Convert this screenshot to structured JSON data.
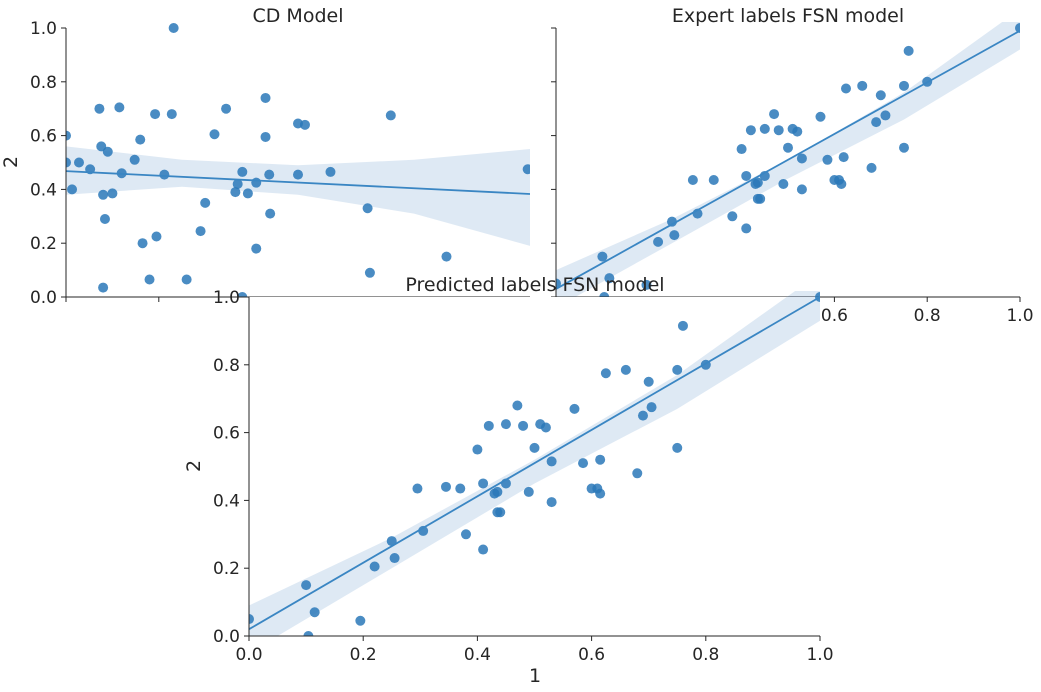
{
  "chart_data": [
    {
      "type": "scatter",
      "title": "CD Model",
      "xlabel": "",
      "ylabel": "2",
      "xlim": [
        0,
        1.0
      ],
      "ylim": [
        0,
        1.0
      ],
      "yticks": [
        "0.0",
        "0.2",
        "0.4",
        "0.6",
        "0.8",
        "1.0"
      ],
      "xticks": [
        "",
        "",
        "",
        "",
        "",
        ""
      ],
      "regression": {
        "y0": 0.468,
        "y1": 0.383
      },
      "band": {
        "upper": [
          [
            0,
            0.56
          ],
          [
            0.25,
            0.51
          ],
          [
            0.5,
            0.49
          ],
          [
            0.75,
            0.51
          ],
          [
            1.0,
            0.55
          ]
        ],
        "lower": [
          [
            0,
            0.38
          ],
          [
            0.25,
            0.41
          ],
          [
            0.5,
            0.38
          ],
          [
            0.75,
            0.31
          ],
          [
            1.0,
            0.19
          ]
        ]
      },
      "points": [
        [
          0.0,
          0.6
        ],
        [
          0.0,
          0.5
        ],
        [
          0.013,
          0.4
        ],
        [
          0.028,
          0.5
        ],
        [
          0.052,
          0.475
        ],
        [
          0.072,
          0.7
        ],
        [
          0.076,
          0.56
        ],
        [
          0.08,
          0.38
        ],
        [
          0.084,
          0.29
        ],
        [
          0.09,
          0.54
        ],
        [
          0.08,
          0.035
        ],
        [
          0.1,
          0.385
        ],
        [
          0.115,
          0.705
        ],
        [
          0.12,
          0.46
        ],
        [
          0.148,
          0.51
        ],
        [
          0.16,
          0.585
        ],
        [
          0.165,
          0.2
        ],
        [
          0.18,
          0.065
        ],
        [
          0.192,
          0.68
        ],
        [
          0.195,
          0.225
        ],
        [
          0.212,
          0.455
        ],
        [
          0.228,
          0.68
        ],
        [
          0.232,
          1.0
        ],
        [
          0.26,
          0.065
        ],
        [
          0.29,
          0.245
        ],
        [
          0.3,
          0.35
        ],
        [
          0.32,
          0.605
        ],
        [
          0.345,
          0.7
        ],
        [
          0.365,
          0.39
        ],
        [
          0.37,
          0.42
        ],
        [
          0.38,
          0.465
        ],
        [
          0.392,
          0.385
        ],
        [
          0.41,
          0.18
        ],
        [
          0.41,
          0.425
        ],
        [
          0.43,
          0.74
        ],
        [
          0.43,
          0.595
        ],
        [
          0.438,
          0.455
        ],
        [
          0.44,
          0.31
        ],
        [
          0.5,
          0.645
        ],
        [
          0.5,
          0.455
        ],
        [
          0.515,
          0.64
        ],
        [
          0.57,
          0.465
        ],
        [
          0.65,
          0.33
        ],
        [
          0.655,
          0.09
        ],
        [
          0.7,
          0.675
        ],
        [
          0.82,
          0.15
        ],
        [
          0.995,
          0.475
        ],
        [
          0.38,
          0.0
        ]
      ]
    },
    {
      "type": "scatter",
      "title": "Expert labels FSN model",
      "xlabel": "",
      "ylabel": "",
      "xlim": [
        0,
        1.0
      ],
      "ylim": [
        0,
        1.0
      ],
      "xticks": [
        "0.6",
        "0.8",
        "1.0"
      ],
      "regression": {
        "y0": 0.03,
        "y1": 0.99
      },
      "band": {
        "upper": [
          [
            0,
            0.1
          ],
          [
            0.25,
            0.29
          ],
          [
            0.5,
            0.51
          ],
          [
            0.75,
            0.76
          ],
          [
            1.0,
            1.07
          ]
        ],
        "lower": [
          [
            0,
            -0.04
          ],
          [
            0.25,
            0.2
          ],
          [
            0.5,
            0.44
          ],
          [
            0.75,
            0.66
          ],
          [
            1.0,
            0.92
          ]
        ]
      },
      "points": [
        [
          0.0,
          0.05
        ],
        [
          0.1,
          0.15
        ],
        [
          0.104,
          0.0
        ],
        [
          0.115,
          0.07
        ],
        [
          0.195,
          0.045
        ],
        [
          0.22,
          0.205
        ],
        [
          0.25,
          0.28
        ],
        [
          0.255,
          0.23
        ],
        [
          0.305,
          0.31
        ],
        [
          0.295,
          0.435
        ],
        [
          0.34,
          0.435
        ],
        [
          0.38,
          0.3
        ],
        [
          0.4,
          0.55
        ],
        [
          0.41,
          0.45
        ],
        [
          0.41,
          0.255
        ],
        [
          0.42,
          0.62
        ],
        [
          0.43,
          0.42
        ],
        [
          0.435,
          0.425
        ],
        [
          0.435,
          0.365
        ],
        [
          0.44,
          0.365
        ],
        [
          0.45,
          0.625
        ],
        [
          0.45,
          0.45
        ],
        [
          0.47,
          0.68
        ],
        [
          0.48,
          0.62
        ],
        [
          0.49,
          0.42
        ],
        [
          0.5,
          0.555
        ],
        [
          0.51,
          0.625
        ],
        [
          0.52,
          0.615
        ],
        [
          0.53,
          0.515
        ],
        [
          0.53,
          0.4
        ],
        [
          0.57,
          0.67
        ],
        [
          0.585,
          0.51
        ],
        [
          0.6,
          0.435
        ],
        [
          0.61,
          0.435
        ],
        [
          0.615,
          0.42
        ],
        [
          0.62,
          0.52
        ],
        [
          0.625,
          0.775
        ],
        [
          0.66,
          0.785
        ],
        [
          0.68,
          0.48
        ],
        [
          0.69,
          0.65
        ],
        [
          0.7,
          0.75
        ],
        [
          0.71,
          0.675
        ],
        [
          0.75,
          0.785
        ],
        [
          0.75,
          0.555
        ],
        [
          0.76,
          0.915
        ],
        [
          0.8,
          0.8
        ],
        [
          1.0,
          1.0
        ]
      ]
    },
    {
      "type": "scatter",
      "title": "Predicted labels FSN model",
      "xlabel": "1",
      "ylabel": "2",
      "xlim": [
        0,
        1.0
      ],
      "ylim": [
        0,
        1.0
      ],
      "xticks": [
        "0.0",
        "0.2",
        "0.4",
        "0.6",
        "0.8",
        "1.0"
      ],
      "yticks": [
        "0.0",
        "0.2",
        "0.4",
        "0.6",
        "0.8",
        "1.0"
      ],
      "regression": {
        "y0": 0.02,
        "y1": 1.0
      },
      "band": {
        "upper": [
          [
            0,
            0.09
          ],
          [
            0.25,
            0.29
          ],
          [
            0.5,
            0.52
          ],
          [
            0.75,
            0.77
          ],
          [
            1.0,
            1.07
          ]
        ],
        "lower": [
          [
            0,
            -0.05
          ],
          [
            0.25,
            0.2
          ],
          [
            0.5,
            0.45
          ],
          [
            0.75,
            0.67
          ],
          [
            1.0,
            0.93
          ]
        ]
      },
      "points": [
        [
          0.0,
          0.05
        ],
        [
          0.1,
          0.15
        ],
        [
          0.104,
          0.0
        ],
        [
          0.115,
          0.07
        ],
        [
          0.195,
          0.045
        ],
        [
          0.22,
          0.205
        ],
        [
          0.25,
          0.28
        ],
        [
          0.255,
          0.23
        ],
        [
          0.305,
          0.31
        ],
        [
          0.295,
          0.435
        ],
        [
          0.345,
          0.44
        ],
        [
          0.37,
          0.435
        ],
        [
          0.38,
          0.3
        ],
        [
          0.4,
          0.55
        ],
        [
          0.41,
          0.45
        ],
        [
          0.41,
          0.255
        ],
        [
          0.42,
          0.62
        ],
        [
          0.43,
          0.42
        ],
        [
          0.435,
          0.425
        ],
        [
          0.435,
          0.365
        ],
        [
          0.44,
          0.365
        ],
        [
          0.45,
          0.625
        ],
        [
          0.45,
          0.45
        ],
        [
          0.47,
          0.68
        ],
        [
          0.48,
          0.62
        ],
        [
          0.49,
          0.425
        ],
        [
          0.5,
          0.555
        ],
        [
          0.51,
          0.625
        ],
        [
          0.52,
          0.615
        ],
        [
          0.53,
          0.515
        ],
        [
          0.53,
          0.395
        ],
        [
          0.57,
          0.67
        ],
        [
          0.585,
          0.51
        ],
        [
          0.6,
          0.435
        ],
        [
          0.61,
          0.435
        ],
        [
          0.615,
          0.42
        ],
        [
          0.615,
          0.52
        ],
        [
          0.625,
          0.775
        ],
        [
          0.66,
          0.785
        ],
        [
          0.68,
          0.48
        ],
        [
          0.69,
          0.65
        ],
        [
          0.7,
          0.75
        ],
        [
          0.705,
          0.675
        ],
        [
          0.75,
          0.785
        ],
        [
          0.75,
          0.555
        ],
        [
          0.76,
          0.915
        ],
        [
          0.8,
          0.8
        ],
        [
          1.0,
          1.0
        ]
      ]
    }
  ]
}
